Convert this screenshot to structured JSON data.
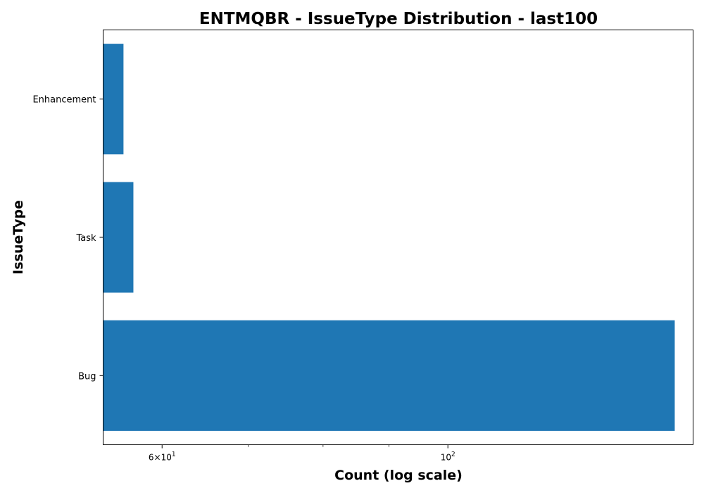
{
  "chart_data": {
    "type": "bar",
    "orientation": "horizontal",
    "title": "ENTMQBR - IssueType Distribution - last100",
    "xlabel": "Count (log scale)",
    "ylabel": "IssueType",
    "x_scale": "log",
    "xlim": [
      54,
      155
    ],
    "categories": [
      "Bug",
      "Task",
      "Enhancement"
    ],
    "values": [
      150,
      57,
      56
    ],
    "bar_color": "#1f77b4",
    "x_major_ticks": [
      {
        "value": 60,
        "mantissa": "6",
        "base": "10",
        "exponent": "1"
      },
      {
        "value": 100,
        "mantissa": "",
        "base": "10",
        "exponent": "2"
      }
    ],
    "x_minor_ticks": [
      70,
      80,
      90
    ],
    "grid": false,
    "legend": "none"
  }
}
